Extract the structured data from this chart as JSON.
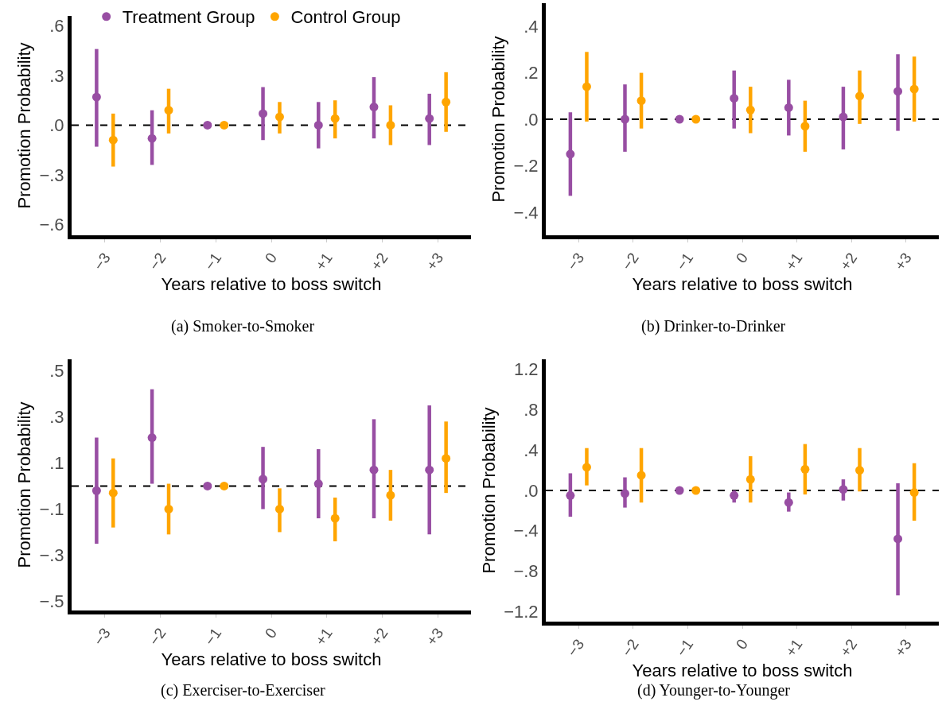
{
  "chart_data": [
    {
      "type": "scatter",
      "title": "(a) Smoker-to-Smoker",
      "xlabel": "Years relative to boss switch",
      "ylabel": "Promotion Probability",
      "marker": "circle",
      "legend": "top",
      "categories": [
        "−3",
        "−2",
        "−1",
        "0",
        "+1",
        "+2",
        "+3"
      ],
      "ylim": [
        -0.665,
        0.66
      ],
      "yticks": [
        {
          "value": 0.6,
          "label": ".6"
        },
        {
          "value": 0.3,
          "label": ".3"
        },
        {
          "value": 0,
          "label": ".0"
        },
        {
          "value": -0.3,
          "label": "−.3"
        },
        {
          "value": -0.6,
          "label": "−.6"
        }
      ],
      "ref_lines": [
        {
          "axis": "y",
          "value": 0,
          "color": "#000000",
          "line_style": "dashed"
        }
      ],
      "series": [
        {
          "name": "Treatment Group",
          "color": "#984ea3",
          "values": [
            0.17,
            -0.08,
            0,
            0.07,
            0.0,
            0.11,
            0.04
          ],
          "errors": [
            [
              -0.13,
              0.46
            ],
            [
              -0.24,
              0.09
            ],
            null,
            [
              -0.09,
              0.23
            ],
            [
              -0.14,
              0.14
            ],
            [
              -0.08,
              0.29
            ],
            [
              -0.12,
              0.19
            ]
          ]
        },
        {
          "name": "Control Group",
          "color": "#ffa500",
          "values": [
            -0.09,
            0.09,
            0,
            0.05,
            0.04,
            0.0,
            0.14
          ],
          "errors": [
            [
              -0.25,
              0.07
            ],
            [
              -0.05,
              0.22
            ],
            null,
            [
              -0.05,
              0.14
            ],
            [
              -0.08,
              0.15
            ],
            [
              -0.12,
              0.12
            ],
            [
              -0.04,
              0.32
            ]
          ]
        }
      ]
    },
    {
      "type": "scatter",
      "title": "(b) Drinker-to-Drinker",
      "xlabel": "Years relative to boss switch",
      "ylabel": "Promotion Probability",
      "marker": "circle",
      "categories": [
        "−3",
        "−2",
        "−1",
        "0",
        "+1",
        "+2",
        "+3"
      ],
      "ylim": [
        -0.5,
        0.5
      ],
      "yticks": [
        {
          "value": 0.4,
          "label": ".4"
        },
        {
          "value": 0.2,
          "label": ".2"
        },
        {
          "value": 0,
          "label": ".0"
        },
        {
          "value": -0.2,
          "label": "−.2"
        },
        {
          "value": -0.4,
          "label": "−.4"
        }
      ],
      "ref_lines": [
        {
          "axis": "y",
          "value": 0,
          "color": "#000000",
          "line_style": "dashed"
        }
      ],
      "series": [
        {
          "color": "#984ea3",
          "values": [
            -0.15,
            0.0,
            0,
            0.09,
            0.05,
            0.01,
            0.12
          ],
          "errors": [
            [
              -0.33,
              0.03
            ],
            [
              -0.14,
              0.15
            ],
            null,
            [
              -0.04,
              0.21
            ],
            [
              -0.07,
              0.17
            ],
            [
              -0.13,
              0.14
            ],
            [
              -0.05,
              0.28
            ]
          ]
        },
        {
          "color": "#ffa500",
          "values": [
            0.14,
            0.08,
            0,
            0.04,
            -0.03,
            0.1,
            0.13
          ],
          "errors": [
            [
              -0.01,
              0.29
            ],
            [
              -0.04,
              0.2
            ],
            null,
            [
              -0.06,
              0.14
            ],
            [
              -0.14,
              0.08
            ],
            [
              -0.02,
              0.21
            ],
            [
              -0.01,
              0.27
            ]
          ]
        }
      ]
    },
    {
      "type": "scatter",
      "title": "(c) Exerciser-to-Exerciser",
      "xlabel": "Years relative to boss switch",
      "ylabel": "Promotion Probability",
      "marker": "circle",
      "categories": [
        "−3",
        "−2",
        "−1",
        "0",
        "+1",
        "+2",
        "+3"
      ],
      "ylim": [
        -0.54,
        0.55
      ],
      "yticks": [
        {
          "value": 0.5,
          "label": ".5"
        },
        {
          "value": 0.3,
          "label": ".3"
        },
        {
          "value": 0.1,
          "label": ".1"
        },
        {
          "value": -0.1,
          "label": "−.1"
        },
        {
          "value": -0.3,
          "label": "−.3"
        },
        {
          "value": -0.5,
          "label": "−.5"
        }
      ],
      "ref_lines": [
        {
          "axis": "y",
          "value": 0,
          "color": "#000000",
          "line_style": "dashed"
        }
      ],
      "series": [
        {
          "color": "#984ea3",
          "values": [
            -0.02,
            0.21,
            0,
            0.03,
            0.01,
            0.07,
            0.07
          ],
          "errors": [
            [
              -0.25,
              0.21
            ],
            [
              0.01,
              0.42
            ],
            null,
            [
              -0.1,
              0.17
            ],
            [
              -0.14,
              0.16
            ],
            [
              -0.14,
              0.29
            ],
            [
              -0.21,
              0.35
            ]
          ]
        },
        {
          "color": "#ffa500",
          "values": [
            -0.03,
            -0.1,
            0,
            -0.1,
            -0.14,
            -0.04,
            0.12
          ],
          "errors": [
            [
              -0.18,
              0.12
            ],
            [
              -0.21,
              0.01
            ],
            null,
            [
              -0.2,
              -0.01
            ],
            [
              -0.24,
              -0.05
            ],
            [
              -0.15,
              0.07
            ],
            [
              -0.03,
              0.28
            ]
          ]
        }
      ]
    },
    {
      "type": "scatter",
      "title": "(d) Younger-to-Younger",
      "xlabel": "Years relative to boss switch",
      "ylabel": "Promotion Probability",
      "marker": "circle",
      "categories": [
        "−3",
        "−2",
        "−1",
        "0",
        "+1",
        "+2",
        "+3"
      ],
      "ylim": [
        -1.3,
        1.3
      ],
      "yticks": [
        {
          "value": 1.2,
          "label": "1.2"
        },
        {
          "value": 0.8,
          "label": ".8"
        },
        {
          "value": 0.4,
          "label": ".4"
        },
        {
          "value": 0,
          "label": ".0"
        },
        {
          "value": -0.4,
          "label": "−.4"
        },
        {
          "value": -0.8,
          "label": "−.8"
        },
        {
          "value": -1.2,
          "label": "−1.2"
        }
      ],
      "ref_lines": [
        {
          "axis": "y",
          "value": 0,
          "color": "#000000",
          "line_style": "dashed"
        }
      ],
      "series": [
        {
          "color": "#984ea3",
          "values": [
            -0.05,
            -0.03,
            0,
            -0.05,
            -0.12,
            0.01,
            -0.48
          ],
          "errors": [
            [
              -0.26,
              0.17
            ],
            [
              -0.17,
              0.13
            ],
            null,
            [
              -0.12,
              0.0
            ],
            [
              -0.21,
              -0.02
            ],
            [
              -0.1,
              0.11
            ],
            [
              -1.04,
              0.07
            ]
          ]
        },
        {
          "color": "#ffa500",
          "values": [
            0.23,
            0.15,
            0,
            0.11,
            0.21,
            0.2,
            -0.02
          ],
          "errors": [
            [
              0.05,
              0.42
            ],
            [
              -0.12,
              0.42
            ],
            null,
            [
              -0.12,
              0.34
            ],
            [
              -0.04,
              0.46
            ],
            [
              -0.01,
              0.42
            ],
            [
              -0.3,
              0.27
            ]
          ]
        }
      ]
    }
  ]
}
